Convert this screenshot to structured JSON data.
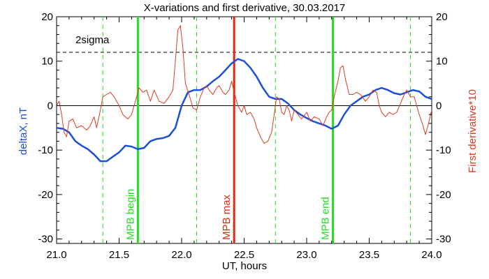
{
  "chart_data": {
    "type": "line",
    "title": "X-variations and first derivative, 30.03.2017",
    "xlabel": "UT, hours",
    "ylabel_left": "deltaX, nT",
    "ylabel_right": "First derivative*10",
    "xlim": [
      21.0,
      24.0
    ],
    "ylim": [
      -31,
      20
    ],
    "x_ticks": [
      21.0,
      21.5,
      22.0,
      22.5,
      23.0,
      23.5,
      24.0
    ],
    "x_tick_labels": [
      "21.0",
      "21.5",
      "22.0",
      "22.5",
      "23.0",
      "23.5",
      "24.0"
    ],
    "y_ticks": [
      20,
      10,
      0,
      -10,
      -20,
      -30
    ],
    "y_tick_labels_left": [
      "20",
      "10",
      "0",
      "-10",
      "-20",
      "-30"
    ],
    "y_tick_labels_right": [
      "20",
      "10",
      "0",
      "-10",
      "-20",
      "-30"
    ],
    "zero_line": 0,
    "sigma_level": {
      "label": "2sigma",
      "value": 12
    },
    "series": [
      {
        "name": "deltaX, nT",
        "color": "#1a4fd8",
        "points": [
          [
            21.0,
            -5.0
          ],
          [
            21.05,
            -5.2
          ],
          [
            21.1,
            -6.0
          ],
          [
            21.15,
            -8.0
          ],
          [
            21.2,
            -9.0
          ],
          [
            21.25,
            -9.8
          ],
          [
            21.3,
            -11.0
          ],
          [
            21.35,
            -12.5
          ],
          [
            21.4,
            -12.5
          ],
          [
            21.45,
            -11.5
          ],
          [
            21.5,
            -10.5
          ],
          [
            21.55,
            -9.0
          ],
          [
            21.6,
            -9.2
          ],
          [
            21.65,
            -9.8
          ],
          [
            21.7,
            -9.5
          ],
          [
            21.75,
            -8.0
          ],
          [
            21.8,
            -7.5
          ],
          [
            21.85,
            -7.3
          ],
          [
            21.9,
            -6.8
          ],
          [
            21.95,
            -5.0
          ],
          [
            22.0,
            0.0
          ],
          [
            22.05,
            3.0
          ],
          [
            22.1,
            3.5
          ],
          [
            22.15,
            3.5
          ],
          [
            22.2,
            4.3
          ],
          [
            22.25,
            5.5
          ],
          [
            22.3,
            6.5
          ],
          [
            22.35,
            8.0
          ],
          [
            22.4,
            9.5
          ],
          [
            22.45,
            10.5
          ],
          [
            22.5,
            10.0
          ],
          [
            22.55,
            8.5
          ],
          [
            22.6,
            6.5
          ],
          [
            22.65,
            4.0
          ],
          [
            22.7,
            2.0
          ],
          [
            22.75,
            1.5
          ],
          [
            22.8,
            1.5
          ],
          [
            22.85,
            0.5
          ],
          [
            22.9,
            -1.0
          ],
          [
            22.95,
            -2.0
          ],
          [
            23.0,
            -2.8
          ],
          [
            23.05,
            -3.5
          ],
          [
            23.1,
            -4.0
          ],
          [
            23.15,
            -4.5
          ],
          [
            23.2,
            -5.2
          ],
          [
            23.25,
            -4.5
          ],
          [
            23.3,
            -2.0
          ],
          [
            23.35,
            0.0
          ],
          [
            23.4,
            1.0
          ],
          [
            23.45,
            2.0
          ],
          [
            23.5,
            2.5
          ],
          [
            23.55,
            3.5
          ],
          [
            23.6,
            4.0
          ],
          [
            23.65,
            3.5
          ],
          [
            23.7,
            2.8
          ],
          [
            23.75,
            2.5
          ],
          [
            23.8,
            3.0
          ],
          [
            23.85,
            3.5
          ],
          [
            23.9,
            3.2
          ],
          [
            23.95,
            2.0
          ],
          [
            24.0,
            1.5
          ]
        ]
      },
      {
        "name": "First derivative*10",
        "color": "#dd3b22",
        "points": [
          [
            21.0,
            0.0
          ],
          [
            21.02,
            1.0
          ],
          [
            21.04,
            -2.0
          ],
          [
            21.06,
            -6.0
          ],
          [
            21.08,
            -7.0
          ],
          [
            21.1,
            -3.5
          ],
          [
            21.13,
            -3.0
          ],
          [
            21.16,
            -5.0
          ],
          [
            21.2,
            -4.5
          ],
          [
            21.24,
            -5.5
          ],
          [
            21.27,
            -4.5
          ],
          [
            21.3,
            -2.5
          ],
          [
            21.32,
            -5.0
          ],
          [
            21.35,
            -1.0
          ],
          [
            21.37,
            2.0
          ],
          [
            21.4,
            2.5
          ],
          [
            21.43,
            3.0
          ],
          [
            21.46,
            2.0
          ],
          [
            21.5,
            0.0
          ],
          [
            21.53,
            -2.0
          ],
          [
            21.57,
            -3.0
          ],
          [
            21.6,
            -2.0
          ],
          [
            21.63,
            1.0
          ],
          [
            21.66,
            4.0
          ],
          [
            21.69,
            3.0
          ],
          [
            21.72,
            3.5
          ],
          [
            21.75,
            1.0
          ],
          [
            21.78,
            3.5
          ],
          [
            21.82,
            1.0
          ],
          [
            21.86,
            0.5
          ],
          [
            21.9,
            2.0
          ],
          [
            21.93,
            3.5
          ],
          [
            21.95,
            10.0
          ],
          [
            21.97,
            17.0
          ],
          [
            21.99,
            18.0
          ],
          [
            22.01,
            13.0
          ],
          [
            22.03,
            5.0
          ],
          [
            22.06,
            2.5
          ],
          [
            22.09,
            -0.5
          ],
          [
            22.12,
            -1.0
          ],
          [
            22.15,
            2.0
          ],
          [
            22.18,
            4.0
          ],
          [
            22.2,
            4.5
          ],
          [
            22.22,
            3.5
          ],
          [
            22.25,
            2.5
          ],
          [
            22.28,
            4.0
          ],
          [
            22.3,
            4.5
          ],
          [
            22.33,
            3.0
          ],
          [
            22.35,
            2.5
          ],
          [
            22.38,
            3.5
          ],
          [
            22.4,
            5.5
          ],
          [
            22.42,
            3.0
          ],
          [
            22.45,
            0.0
          ],
          [
            22.48,
            -1.5
          ],
          [
            22.5,
            0.0
          ],
          [
            22.52,
            -2.0
          ],
          [
            22.55,
            -1.5
          ],
          [
            22.58,
            -3.0
          ],
          [
            22.6,
            -5.0
          ],
          [
            22.63,
            -7.0
          ],
          [
            22.66,
            -8.5
          ],
          [
            22.69,
            -8.0
          ],
          [
            22.72,
            -6.0
          ],
          [
            22.74,
            -2.0
          ],
          [
            22.76,
            2.0
          ],
          [
            22.78,
            1.5
          ],
          [
            22.8,
            -1.5
          ],
          [
            22.82,
            -2.0
          ],
          [
            22.84,
            0.0
          ],
          [
            22.86,
            -1.0
          ],
          [
            22.88,
            -3.5
          ],
          [
            22.9,
            -1.0
          ],
          [
            22.93,
            -2.0
          ],
          [
            22.96,
            -3.0
          ],
          [
            23.0,
            -1.5
          ],
          [
            23.03,
            -3.5
          ],
          [
            23.06,
            -2.5
          ],
          [
            23.1,
            -3.0
          ],
          [
            23.13,
            -4.5
          ],
          [
            23.16,
            -2.5
          ],
          [
            23.18,
            -1.5
          ],
          [
            23.2,
            -1.0
          ],
          [
            23.22,
            2.0
          ],
          [
            23.25,
            5.5
          ],
          [
            23.27,
            8.5
          ],
          [
            23.29,
            9.0
          ],
          [
            23.31,
            6.0
          ],
          [
            23.34,
            2.5
          ],
          [
            23.37,
            2.5
          ],
          [
            23.4,
            3.0
          ],
          [
            23.43,
            2.5
          ],
          [
            23.47,
            1.0
          ],
          [
            23.5,
            2.0
          ],
          [
            23.53,
            3.5
          ],
          [
            23.56,
            3.0
          ],
          [
            23.58,
            0.0
          ],
          [
            23.6,
            -1.5
          ],
          [
            23.63,
            -2.5
          ],
          [
            23.66,
            -1.5
          ],
          [
            23.69,
            -2.0
          ],
          [
            23.72,
            -1.5
          ],
          [
            23.75,
            0.5
          ],
          [
            23.78,
            2.5
          ],
          [
            23.8,
            3.5
          ],
          [
            23.83,
            2.0
          ],
          [
            23.86,
            2.0
          ],
          [
            23.88,
            0.0
          ],
          [
            23.9,
            -2.0
          ],
          [
            23.93,
            -4.5
          ],
          [
            23.95,
            -6.5
          ],
          [
            23.97,
            -4.5
          ],
          [
            24.0,
            -1.0
          ]
        ]
      }
    ],
    "vertical_lines": [
      {
        "x": 21.37,
        "color": "#22dd22",
        "style": "dashed"
      },
      {
        "x": 21.65,
        "color": "#22dd22",
        "style": "solid",
        "label": "MPB begin"
      },
      {
        "x": 22.12,
        "color": "#22dd22",
        "style": "dashed"
      },
      {
        "x": 22.42,
        "color": "#dd2a10",
        "style": "solid",
        "label": "MPB max"
      },
      {
        "x": 22.75,
        "color": "#22dd22",
        "style": "dashed"
      },
      {
        "x": 23.21,
        "color": "#22dd22",
        "style": "solid",
        "label": "MPB end"
      },
      {
        "x": 23.83,
        "color": "#22dd22",
        "style": "dashed"
      }
    ],
    "colors": {
      "left_axis_title": "#1a4fd8",
      "right_axis_title": "#dd3b22",
      "green": "#22dd22",
      "red": "#dd2a10"
    }
  }
}
